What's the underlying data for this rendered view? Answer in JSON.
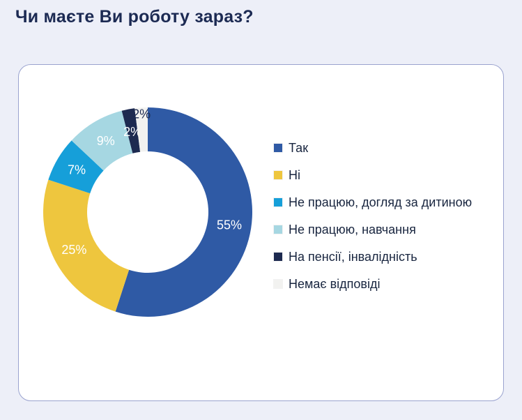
{
  "page": {
    "title": "Чи маєте Ви роботу зараз?"
  },
  "chart_data": {
    "type": "pie",
    "donut": true,
    "title": "Чи маєте Ви роботу зараз?",
    "legend_position": "right",
    "start_angle": 0,
    "inner_radius_ratio": 0.58,
    "slices": [
      {
        "label": "Так",
        "value": 55,
        "display": "55%",
        "color": "#2f5aa5",
        "text_color": "#ffffff"
      },
      {
        "label": "Ні",
        "value": 25,
        "display": "25%",
        "color": "#eec63e",
        "text_color": "#ffffff"
      },
      {
        "label": "Не працюю, догляд за дитиною",
        "value": 7,
        "display": "7%",
        "color": "#169fd9",
        "text_color": "#ffffff"
      },
      {
        "label": "Не працюю, навчання",
        "value": 9,
        "display": "9%",
        "color": "#a6d7e2",
        "text_color": "#ffffff"
      },
      {
        "label": "На пенсії, інвалідність",
        "value": 2,
        "display": "2%",
        "color": "#1d2a50",
        "text_color": "#ffffff",
        "label_radius": 0.78
      },
      {
        "label": "Немає відповіді",
        "value": 2,
        "display": "2%",
        "color": "#f2f2f0",
        "text_color": "#1d2a50",
        "label_radius": 0.94
      }
    ]
  }
}
